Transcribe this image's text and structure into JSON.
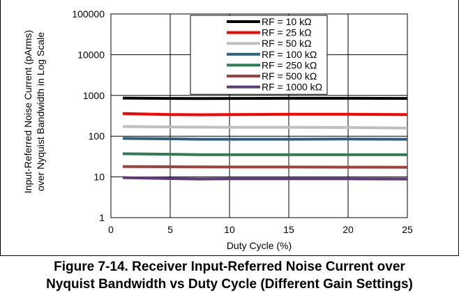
{
  "caption": {
    "line1": "Figure 7-14. Receiver Input-Referred Noise Current over",
    "line2": "Nyquist Bandwidth vs Duty Cycle (Different Gain Settings)"
  },
  "chart_data": {
    "type": "line",
    "title": "",
    "xlabel": "Duty Cycle (%)",
    "ylabel_line1": "Input-Referred Noise Current (pArms)",
    "ylabel_line2": "over Nyquist Bandwidth in Log Scale",
    "xlim": [
      0,
      25
    ],
    "ylim": [
      1,
      100000
    ],
    "yscale": "log",
    "grid": true,
    "legend_position": "top-right",
    "x_ticks": [
      "0",
      "5",
      "10",
      "15",
      "20",
      "25"
    ],
    "y_ticks": [
      "1",
      "10",
      "100",
      "1000",
      "10000",
      "100000"
    ],
    "x": [
      1,
      5,
      7.5,
      10,
      15,
      20,
      25
    ],
    "series": [
      {
        "name": "RF = 10 kΩ",
        "color": "#000000",
        "values": [
          860,
          845,
          840,
          845,
          850,
          850,
          845
        ]
      },
      {
        "name": "RF = 25 kΩ",
        "color": "#ff0000",
        "values": [
          360,
          340,
          335,
          340,
          345,
          345,
          340
        ]
      },
      {
        "name": "RF = 50 kΩ",
        "color": "#bfbfbf",
        "values": [
          172,
          168,
          166,
          165,
          165,
          163,
          158
        ]
      },
      {
        "name": "RF = 100 kΩ",
        "color": "#2e5f7f",
        "values": [
          88,
          86,
          84,
          84,
          84,
          85,
          84
        ]
      },
      {
        "name": "RF = 250 kΩ",
        "color": "#2e7d52",
        "values": [
          37,
          36,
          35,
          35,
          35,
          35,
          35
        ]
      },
      {
        "name": "RF = 500 kΩ",
        "color": "#a0413c",
        "values": [
          18,
          17.8,
          17.6,
          17.5,
          17.5,
          17.4,
          17.3
        ]
      },
      {
        "name": "RF = 1000 kΩ",
        "color": "#5e3a7a",
        "values": [
          9.6,
          9.1,
          8.9,
          9.0,
          9.0,
          9.0,
          8.9
        ]
      }
    ]
  }
}
